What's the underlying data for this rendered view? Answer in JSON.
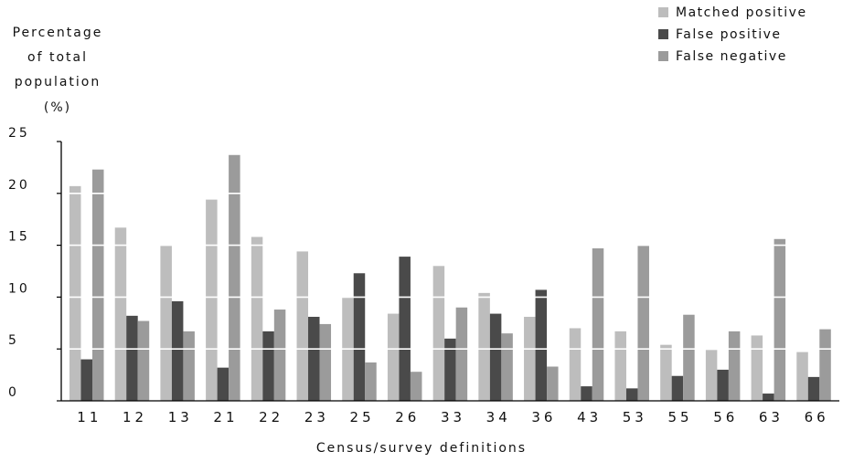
{
  "chart_data": {
    "type": "bar",
    "ylabel_lines": [
      "Percentage",
      "of total",
      "population",
      "(%)"
    ],
    "xlabel": "Census/survey definitions",
    "ylim": [
      0,
      25
    ],
    "yticks": [
      "0",
      "5",
      "10",
      "15",
      "20",
      "25"
    ],
    "ytick_values": [
      0,
      5,
      10,
      15,
      20,
      25
    ],
    "grid": "white horizontal lines at 5, 10, 15, 20",
    "legend_position": "top-right",
    "categories": [
      "11",
      "12",
      "13",
      "21",
      "22",
      "23",
      "25",
      "26",
      "33",
      "34",
      "36",
      "43",
      "53",
      "55",
      "56",
      "63",
      "66"
    ],
    "series": [
      {
        "name": "Matched positive",
        "color": "#bdbdbd",
        "values": [
          20.7,
          16.7,
          15.0,
          19.4,
          15.8,
          14.4,
          10.0,
          8.4,
          13.0,
          10.4,
          8.1,
          7.0,
          6.7,
          5.4,
          4.9,
          6.3,
          4.7
        ]
      },
      {
        "name": "False positive",
        "color": "#4a4a4a",
        "values": [
          4.0,
          8.2,
          9.6,
          3.2,
          6.7,
          8.1,
          12.3,
          13.9,
          6.0,
          8.4,
          10.7,
          1.4,
          1.2,
          2.4,
          3.0,
          0.7,
          2.3
        ]
      },
      {
        "name": "False negative",
        "color": "#9b9b9b",
        "values": [
          22.3,
          7.7,
          6.7,
          23.7,
          8.8,
          7.4,
          3.7,
          2.8,
          9.0,
          6.5,
          3.3,
          14.7,
          15.0,
          8.3,
          6.7,
          15.6,
          6.9
        ]
      }
    ]
  }
}
